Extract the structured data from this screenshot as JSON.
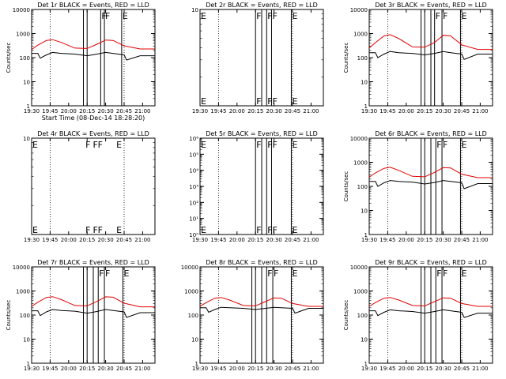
{
  "figure": {
    "background": "#ffffff",
    "axis_color": "#000000"
  },
  "chart_data": [
    {
      "type": "line",
      "panel": "det1r",
      "title": "Det 1r BLACK = Events, RED = LLD",
      "xlabel": "Start Time (08-Dec-14 18:28:20)",
      "ylabel": "Counts/sec",
      "x_ticks": [
        "19:30",
        "19:45",
        "20:00",
        "20:15",
        "20:30",
        "20:45",
        "21:00"
      ],
      "y_scale": "log",
      "ylim": [
        1,
        10000
      ],
      "y_ticks": [
        "1",
        "10",
        "100",
        "1000",
        "10000"
      ],
      "dotted_lines": [
        "19:45",
        "20:45"
      ],
      "event_lines": [
        "20:12",
        "20:15",
        "20:26",
        "20:29",
        "20:43"
      ],
      "event_labels": [
        {
          "x": "20:26",
          "text": "F"
        },
        {
          "x": "20:29",
          "text": "F"
        },
        {
          "x": "20:43",
          "text": "E"
        }
      ],
      "series": [
        {
          "name": "RED",
          "color": "#e00000",
          "x": [
            "19:30",
            "19:35",
            "19:42",
            "19:47",
            "19:54",
            "20:05",
            "20:15",
            "20:23",
            "20:30",
            "20:36",
            "20:45",
            "20:58",
            "21:10"
          ],
          "values": [
            220,
            330,
            520,
            560,
            430,
            250,
            240,
            360,
            540,
            520,
            310,
            230,
            230
          ]
        },
        {
          "name": "BLACK",
          "color": "#000000",
          "x": [
            "19:30",
            "19:35",
            "19:37",
            "19:42",
            "19:47",
            "19:54",
            "20:05",
            "20:15",
            "20:23",
            "20:30",
            "20:36",
            "20:45",
            "20:47",
            "20:58",
            "21:10"
          ],
          "values": [
            150,
            150,
            95,
            130,
            165,
            150,
            140,
            120,
            140,
            165,
            150,
            130,
            80,
            120,
            120
          ]
        }
      ]
    },
    {
      "type": "line",
      "panel": "det2r",
      "title": "Det 2r BLACK = Events, RED = LLD",
      "xlabel": "",
      "ylabel": "",
      "x_ticks": [
        "19:30",
        "19:45",
        "20:00",
        "20:15",
        "20:30",
        "20:45",
        "21:00"
      ],
      "y_scale": "log",
      "ylim": [
        1,
        10
      ],
      "y_ticks": [
        "10"
      ],
      "dotted_lines": [
        "19:45",
        "20:45"
      ],
      "event_lines": [
        "20:15",
        "20:20",
        "20:24",
        "20:28",
        "20:44"
      ],
      "event_labels": [
        {
          "x": "19:30",
          "text": "E"
        },
        {
          "x": "20:15",
          "text": "F"
        },
        {
          "x": "20:24",
          "text": "F"
        },
        {
          "x": "20:28",
          "text": "F"
        },
        {
          "x": "20:44",
          "text": "E"
        }
      ],
      "series": []
    },
    {
      "type": "line",
      "panel": "det3r",
      "title": "Det 3r BLACK = Events, RED = LLD",
      "xlabel": "",
      "ylabel": "Counts/sec",
      "x_ticks": [
        "19:30",
        "19:45",
        "20:00",
        "20:15",
        "20:30",
        "20:45",
        "21:00"
      ],
      "y_scale": "log",
      "ylim": [
        1,
        10000
      ],
      "y_ticks": [
        "1",
        "10",
        "100",
        "1000",
        "10000"
      ],
      "dotted_lines": [
        "19:45",
        "20:45"
      ],
      "event_lines": [
        "20:12",
        "20:15",
        "20:20",
        "20:23",
        "20:29",
        "20:44"
      ],
      "event_labels": [
        {
          "x": "20:23",
          "text": "F"
        },
        {
          "x": "20:29",
          "text": "F"
        },
        {
          "x": "20:44",
          "text": "E"
        }
      ],
      "series": [
        {
          "name": "RED",
          "color": "#e00000",
          "x": [
            "19:30",
            "19:35",
            "19:42",
            "19:47",
            "19:54",
            "20:05",
            "20:15",
            "20:23",
            "20:30",
            "20:36",
            "20:45",
            "20:58",
            "21:10"
          ],
          "values": [
            250,
            420,
            800,
            900,
            620,
            280,
            270,
            430,
            850,
            800,
            340,
            220,
            220
          ]
        },
        {
          "name": "BLACK",
          "color": "#000000",
          "x": [
            "19:30",
            "19:35",
            "19:37",
            "19:42",
            "19:47",
            "19:54",
            "20:05",
            "20:15",
            "20:23",
            "20:30",
            "20:36",
            "20:45",
            "20:47",
            "20:58",
            "21:10"
          ],
          "values": [
            160,
            160,
            100,
            140,
            180,
            160,
            150,
            130,
            150,
            180,
            160,
            140,
            85,
            140,
            140
          ]
        }
      ]
    },
    {
      "type": "line",
      "panel": "det4r",
      "title": "Det 4r BLACK = Events, RED = LLD",
      "xlabel": "",
      "ylabel": "",
      "x_ticks": [
        "19:30",
        "19:45",
        "20:00",
        "20:15",
        "20:30",
        "20:45",
        "21:00"
      ],
      "y_scale": "log",
      "ylim": [
        1,
        10
      ],
      "y_ticks": [
        "10"
      ],
      "dotted_lines": [
        "19:45",
        "20:45"
      ],
      "event_lines": [],
      "event_labels": [
        {
          "x": "19:30",
          "text": "E"
        },
        {
          "x": "20:13",
          "text": "F"
        },
        {
          "x": "20:19",
          "text": "F"
        },
        {
          "x": "20:23",
          "text": "F"
        },
        {
          "x": "20:38",
          "text": "E"
        }
      ],
      "series": []
    },
    {
      "type": "line",
      "panel": "det5r",
      "title": "Det 5r BLACK = Events, RED = LLD",
      "xlabel": "",
      "ylabel": "",
      "x_ticks": [
        "19:30",
        "19:45",
        "20:00",
        "20:15",
        "20:30",
        "20:45",
        "21:00"
      ],
      "y_scale": "log",
      "ylim": [
        1,
        1000000
      ],
      "y_ticks": [
        "10⁰",
        "10¹",
        "10²",
        "10³",
        "10⁴",
        "10⁵",
        "10⁶"
      ],
      "dotted_lines": [
        "19:45",
        "20:45"
      ],
      "event_lines": [
        "20:15",
        "20:20",
        "20:24",
        "20:28",
        "20:44"
      ],
      "event_labels": [
        {
          "x": "19:30",
          "text": "E"
        },
        {
          "x": "20:15",
          "text": "F"
        },
        {
          "x": "20:24",
          "text": "F"
        },
        {
          "x": "20:28",
          "text": "F"
        },
        {
          "x": "20:44",
          "text": "E"
        }
      ],
      "series": []
    },
    {
      "type": "line",
      "panel": "det6r",
      "title": "Det 6r BLACK = Events, RED = LLD",
      "xlabel": "",
      "ylabel": "Counts/sec",
      "x_ticks": [
        "19:30",
        "19:45",
        "20:00",
        "20:15",
        "20:30",
        "20:45",
        "21:00"
      ],
      "y_scale": "log",
      "ylim": [
        1,
        10000
      ],
      "y_ticks": [
        "1",
        "10",
        "100",
        "1000",
        "10000"
      ],
      "dotted_lines": [
        "19:45",
        "20:45"
      ],
      "event_lines": [
        "20:12",
        "20:15",
        "20:20",
        "20:24",
        "20:29",
        "20:44"
      ],
      "event_labels": [
        {
          "x": "20:24",
          "text": "F"
        },
        {
          "x": "20:29",
          "text": "F"
        },
        {
          "x": "20:44",
          "text": "E"
        }
      ],
      "series": [
        {
          "name": "RED",
          "color": "#e00000",
          "x": [
            "19:30",
            "19:35",
            "19:42",
            "19:47",
            "19:54",
            "20:05",
            "20:15",
            "20:23",
            "20:30",
            "20:36",
            "20:45",
            "20:58",
            "21:10"
          ],
          "values": [
            240,
            360,
            560,
            620,
            460,
            260,
            250,
            380,
            600,
            580,
            320,
            230,
            230
          ]
        },
        {
          "name": "BLACK",
          "color": "#000000",
          "x": [
            "19:30",
            "19:35",
            "19:37",
            "19:42",
            "19:47",
            "19:54",
            "20:05",
            "20:15",
            "20:23",
            "20:30",
            "20:36",
            "20:45",
            "20:47",
            "20:58",
            "21:10"
          ],
          "values": [
            160,
            160,
            100,
            140,
            175,
            160,
            150,
            125,
            145,
            175,
            160,
            140,
            80,
            130,
            130
          ]
        }
      ]
    },
    {
      "type": "line",
      "panel": "det7r",
      "title": "Det 7r BLACK = Events, RED = LLD",
      "xlabel": "",
      "ylabel": "Counts/sec",
      "x_ticks": [
        "19:30",
        "19:45",
        "20:00",
        "20:15",
        "20:30",
        "20:45",
        "21:00"
      ],
      "y_scale": "log",
      "ylim": [
        1,
        10000
      ],
      "y_ticks": [
        "1",
        "10",
        "100",
        "1000",
        "10000"
      ],
      "dotted_lines": [
        "19:45",
        "20:45"
      ],
      "event_lines": [
        "20:12",
        "20:15",
        "20:20",
        "20:24",
        "20:29",
        "20:44"
      ],
      "event_labels": [
        {
          "x": "20:24",
          "text": "F"
        },
        {
          "x": "20:29",
          "text": "F"
        },
        {
          "x": "20:44",
          "text": "E"
        }
      ],
      "series": [
        {
          "name": "RED",
          "color": "#e00000",
          "x": [
            "19:30",
            "19:35",
            "19:42",
            "19:47",
            "19:54",
            "20:05",
            "20:15",
            "20:23",
            "20:30",
            "20:36",
            "20:45",
            "20:58",
            "21:10"
          ],
          "values": [
            230,
            340,
            540,
            580,
            440,
            250,
            240,
            370,
            570,
            550,
            310,
            220,
            220
          ]
        },
        {
          "name": "BLACK",
          "color": "#000000",
          "x": [
            "19:30",
            "19:35",
            "19:37",
            "19:42",
            "19:47",
            "19:54",
            "20:05",
            "20:15",
            "20:23",
            "20:30",
            "20:36",
            "20:45",
            "20:47",
            "20:58",
            "21:10"
          ],
          "values": [
            150,
            150,
            95,
            135,
            170,
            155,
            145,
            120,
            140,
            170,
            155,
            135,
            80,
            125,
            125
          ]
        }
      ]
    },
    {
      "type": "line",
      "panel": "det8r",
      "title": "Det 8r BLACK = Events, RED = LLD",
      "xlabel": "",
      "ylabel": "",
      "x_ticks": [
        "19:30",
        "19:45",
        "20:00",
        "20:15",
        "20:30",
        "20:45",
        "21:00"
      ],
      "y_scale": "log",
      "ylim": [
        1,
        10000
      ],
      "y_ticks": [
        "1",
        "10",
        "100",
        "1000",
        "10000"
      ],
      "dotted_lines": [
        "19:45",
        "20:45"
      ],
      "event_lines": [
        "20:12",
        "20:15",
        "20:20",
        "20:24",
        "20:29",
        "20:44"
      ],
      "event_labels": [
        {
          "x": "20:24",
          "text": "F"
        },
        {
          "x": "20:29",
          "text": "F"
        },
        {
          "x": "20:44",
          "text": "E"
        }
      ],
      "series": [
        {
          "name": "RED",
          "color": "#e00000",
          "x": [
            "19:30",
            "19:35",
            "19:42",
            "19:47",
            "19:54",
            "20:05",
            "20:15",
            "20:23",
            "20:30",
            "20:36",
            "20:45",
            "20:58",
            "21:10"
          ],
          "values": [
            230,
            330,
            500,
            540,
            420,
            250,
            240,
            360,
            520,
            500,
            300,
            230,
            230
          ]
        },
        {
          "name": "BLACK",
          "color": "#000000",
          "x": [
            "19:30",
            "19:35",
            "19:37",
            "19:42",
            "19:47",
            "19:54",
            "20:05",
            "20:15",
            "20:23",
            "20:30",
            "20:36",
            "20:45",
            "20:47",
            "20:58",
            "21:10"
          ],
          "values": [
            200,
            200,
            130,
            170,
            210,
            200,
            190,
            170,
            190,
            210,
            200,
            190,
            120,
            190,
            190
          ]
        }
      ]
    },
    {
      "type": "line",
      "panel": "det9r",
      "title": "Det 9r BLACK = Events, RED = LLD",
      "xlabel": "",
      "ylabel": "Counts/sec",
      "x_ticks": [
        "19:30",
        "19:45",
        "20:00",
        "20:15",
        "20:30",
        "20:45",
        "21:00"
      ],
      "y_scale": "log",
      "ylim": [
        1,
        10000
      ],
      "y_ticks": [
        "1",
        "10",
        "100",
        "1000",
        "10000"
      ],
      "dotted_lines": [
        "19:45",
        "20:45"
      ],
      "event_lines": [
        "20:12",
        "20:15",
        "20:20",
        "20:24",
        "20:29",
        "20:44"
      ],
      "event_labels": [
        {
          "x": "20:24",
          "text": "F"
        },
        {
          "x": "20:29",
          "text": "F"
        },
        {
          "x": "20:44",
          "text": "E"
        }
      ],
      "series": [
        {
          "name": "RED",
          "color": "#e00000",
          "x": [
            "19:30",
            "19:35",
            "19:42",
            "19:47",
            "19:54",
            "20:05",
            "20:15",
            "20:23",
            "20:30",
            "20:36",
            "20:45",
            "20:58",
            "21:10"
          ],
          "values": [
            230,
            330,
            500,
            540,
            420,
            250,
            240,
            360,
            520,
            500,
            300,
            230,
            230
          ]
        },
        {
          "name": "BLACK",
          "color": "#000000",
          "x": [
            "19:30",
            "19:35",
            "19:37",
            "19:42",
            "19:47",
            "19:54",
            "20:05",
            "20:15",
            "20:23",
            "20:30",
            "20:36",
            "20:45",
            "20:47",
            "20:58",
            "21:10"
          ],
          "values": [
            150,
            150,
            95,
            130,
            165,
            150,
            140,
            120,
            140,
            165,
            150,
            130,
            80,
            120,
            120
          ]
        }
      ]
    }
  ]
}
